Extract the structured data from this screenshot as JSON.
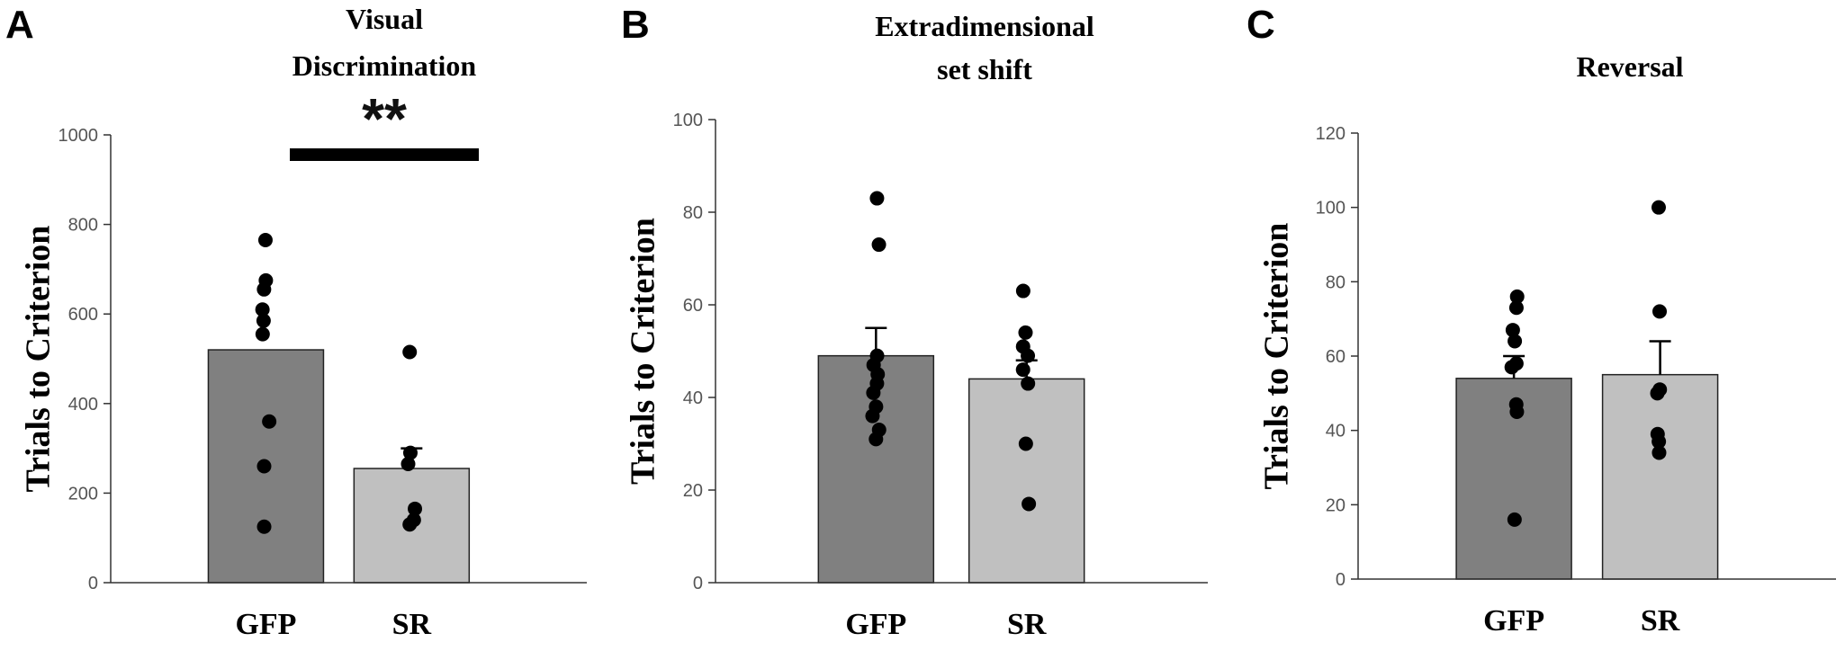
{
  "colors": {
    "gfp_bar": "#808080",
    "sr_bar": "#c0c0c0",
    "dot": "#000000",
    "axis": "#333333"
  },
  "chart_data": [
    {
      "type": "bar",
      "panel": "A",
      "title": [
        "Visual",
        "Discrimination"
      ],
      "ylabel": "Trials  to Criterion",
      "ylim": [
        0,
        1000
      ],
      "yticks": [
        0,
        200,
        400,
        600,
        800,
        1000
      ],
      "categories": [
        "GFP",
        "SR"
      ],
      "values": [
        520,
        255
      ],
      "errors": [
        null,
        45
      ],
      "points": [
        [
          765,
          675,
          655,
          610,
          585,
          555,
          360,
          260,
          125
        ],
        [
          515,
          290,
          265,
          165,
          140,
          130
        ]
      ],
      "significance": "**"
    },
    {
      "type": "bar",
      "panel": "B",
      "title": [
        "Extradimensional",
        "set shift"
      ],
      "ylabel": "Trials  to Criterion",
      "ylim": [
        0,
        100
      ],
      "yticks": [
        0,
        20,
        40,
        60,
        80,
        100
      ],
      "categories": [
        "GFP",
        "SR"
      ],
      "values": [
        49,
        44
      ],
      "errors": [
        6,
        4
      ],
      "points": [
        [
          83,
          73,
          49,
          47,
          45,
          43,
          41,
          38,
          36,
          33,
          31
        ],
        [
          63,
          54,
          51,
          49,
          46,
          43,
          30,
          17
        ]
      ],
      "significance": ""
    },
    {
      "type": "bar",
      "panel": "C",
      "title": [
        "Reversal"
      ],
      "ylabel": "Trials  to Criterion",
      "ylim": [
        0,
        120
      ],
      "yticks": [
        0,
        20,
        40,
        60,
        80,
        100,
        120
      ],
      "categories": [
        "GFP",
        "SR"
      ],
      "values": [
        54,
        55
      ],
      "errors": [
        6,
        9
      ],
      "points": [
        [
          76,
          73,
          67,
          64,
          58,
          57,
          47,
          45,
          16
        ],
        [
          100,
          72,
          51,
          50,
          39,
          37,
          34
        ]
      ],
      "significance": ""
    }
  ]
}
